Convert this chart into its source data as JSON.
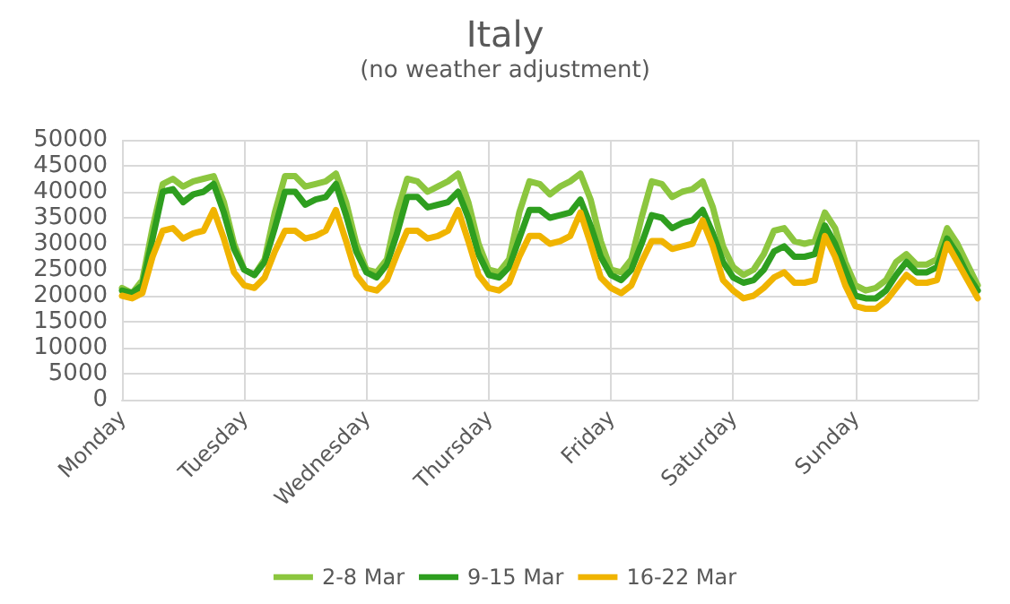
{
  "chart_data": {
    "type": "line",
    "title": "Italy",
    "subtitle": "(no weather adjustment)",
    "categories": [
      "Monday",
      null,
      null,
      null,
      null,
      null,
      null,
      null,
      null,
      null,
      null,
      null,
      "Tuesday",
      null,
      null,
      null,
      null,
      null,
      null,
      null,
      null,
      null,
      null,
      null,
      "Wednesday",
      null,
      null,
      null,
      null,
      null,
      null,
      null,
      null,
      null,
      null,
      null,
      "Thursday",
      null,
      null,
      null,
      null,
      null,
      null,
      null,
      null,
      null,
      null,
      null,
      "Friday",
      null,
      null,
      null,
      null,
      null,
      null,
      null,
      null,
      null,
      null,
      null,
      "Saturday",
      null,
      null,
      null,
      null,
      null,
      null,
      null,
      null,
      null,
      null,
      null,
      "Sunday",
      null,
      null,
      null,
      null,
      null,
      null,
      null,
      null,
      null,
      null,
      null,
      null
    ],
    "series": [
      {
        "name": "2-8 Mar",
        "color": "#8cc63f",
        "values": [
          21500,
          20500,
          23000,
          33000,
          41500,
          42500,
          41000,
          42000,
          42500,
          43000,
          38000,
          30000,
          25000,
          24000,
          27000,
          36000,
          43000,
          43000,
          41000,
          41500,
          42000,
          43500,
          38000,
          30000,
          25000,
          24500,
          27000,
          36000,
          42500,
          42000,
          40000,
          41000,
          42000,
          43500,
          38000,
          30000,
          25000,
          24500,
          27000,
          36000,
          42000,
          41500,
          39500,
          41000,
          42000,
          43500,
          38500,
          30500,
          25000,
          24500,
          27000,
          35000,
          42000,
          41500,
          39000,
          40000,
          40500,
          42000,
          37000,
          29500,
          25500,
          24000,
          25000,
          28000,
          32500,
          33000,
          30500,
          30000,
          30500,
          36000,
          33000,
          26500,
          22000,
          21000,
          21500,
          23000,
          26500,
          28000,
          26000,
          26000,
          27000,
          33000,
          30000,
          26000,
          22000
        ]
      },
      {
        "name": "9-15 Mar",
        "color": "#2e9e1f",
        "values": [
          21000,
          20500,
          22000,
          31000,
          40000,
          40500,
          38000,
          39500,
          40000,
          41500,
          36000,
          29000,
          25000,
          24000,
          26500,
          33000,
          40000,
          40000,
          37500,
          38500,
          39000,
          41500,
          35500,
          28500,
          24500,
          23500,
          26000,
          32000,
          39000,
          39000,
          37000,
          37500,
          38000,
          40000,
          35000,
          28000,
          24000,
          23500,
          25500,
          31000,
          36500,
          36500,
          35000,
          35500,
          36000,
          38500,
          33500,
          27500,
          24000,
          23000,
          25000,
          30000,
          35500,
          35000,
          33000,
          34000,
          34500,
          36500,
          32000,
          26500,
          23500,
          22500,
          23000,
          25000,
          28500,
          29500,
          27500,
          27500,
          28000,
          33500,
          30000,
          25000,
          20000,
          19500,
          19500,
          21000,
          24000,
          26500,
          24500,
          24500,
          25500,
          31000,
          28000,
          24000,
          21000
        ]
      },
      {
        "name": "16-22 Mar",
        "color": "#f0b400",
        "values": [
          20000,
          19500,
          20500,
          27500,
          32500,
          33000,
          31000,
          32000,
          32500,
          36500,
          31000,
          24500,
          22000,
          21500,
          23500,
          28500,
          32500,
          32500,
          31000,
          31500,
          32500,
          36500,
          30500,
          24000,
          21500,
          21000,
          23000,
          28000,
          32500,
          32500,
          31000,
          31500,
          32500,
          36500,
          30500,
          24000,
          21500,
          21000,
          22500,
          27500,
          31500,
          31500,
          30000,
          30500,
          31500,
          36000,
          30000,
          23500,
          21500,
          20500,
          22000,
          26500,
          30500,
          30500,
          29000,
          29500,
          30000,
          34500,
          29500,
          23000,
          21000,
          19500,
          20000,
          21500,
          23500,
          24500,
          22500,
          22500,
          23000,
          31500,
          27500,
          22000,
          18000,
          17500,
          17500,
          19000,
          21500,
          24000,
          22500,
          22500,
          23000,
          30000,
          26500,
          23000,
          19500
        ]
      }
    ],
    "ylim": [
      0,
      50000
    ],
    "yticks": [
      0,
      5000,
      10000,
      15000,
      20000,
      25000,
      30000,
      35000,
      40000,
      45000,
      50000
    ],
    "grid": true,
    "legend": "bottom",
    "marker": "none",
    "line_style": "solid"
  }
}
